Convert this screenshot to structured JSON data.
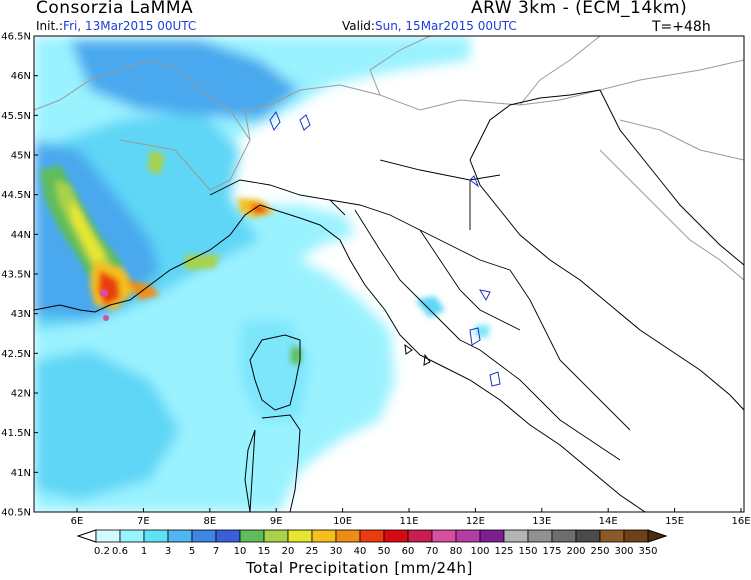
{
  "header": {
    "org": "Consorzia LaMMA",
    "model": "ARW 3km - (ECM_14km)",
    "init_label": "Init.:",
    "init_value": "Fri, 13Mar2015 00UTC",
    "valid_label": "Valid:",
    "valid_value": "Sun, 15Mar2015 00UTC",
    "lead": "T=+48h"
  },
  "lat_ticks": [
    "46.5N",
    "46N",
    "45.5N",
    "45N",
    "44.5N",
    "44N",
    "43.5N",
    "43N",
    "42.5N",
    "42N",
    "41.5N",
    "41N",
    "40.5N"
  ],
  "lon_ticks": [
    "6E",
    "7E",
    "8E",
    "9E",
    "10E",
    "11E",
    "12E",
    "13E",
    "14E",
    "15E",
    "16E"
  ],
  "legend": {
    "title": "Total Precipitation [mm/24h]",
    "labels": [
      "0.2",
      "0.6",
      "1",
      "3",
      "5",
      "7",
      "10",
      "15",
      "20",
      "25",
      "30",
      "40",
      "50",
      "60",
      "70",
      "80",
      "100",
      "125",
      "150",
      "175",
      "200",
      "250",
      "300",
      "350"
    ],
    "colors": [
      "#d2fbff",
      "#96f5ff",
      "#5fe1f8",
      "#4fb6f2",
      "#3e86e6",
      "#3a5fd9",
      "#5ebd5a",
      "#a8d24a",
      "#e6e632",
      "#f5bf1e",
      "#f08c14",
      "#eb3c0f",
      "#d70a14",
      "#c81e50",
      "#d750a0",
      "#b43ca5",
      "#7d1e91",
      "#b4b4b4",
      "#919191",
      "#6e6e6e",
      "#4b4b4b",
      "#8c5a28",
      "#6e4119",
      "#4b2d0f"
    ]
  },
  "colors": {
    "header_blue": "#1c3fd8",
    "coastline": "#000000",
    "border": "#9a9a9a"
  }
}
